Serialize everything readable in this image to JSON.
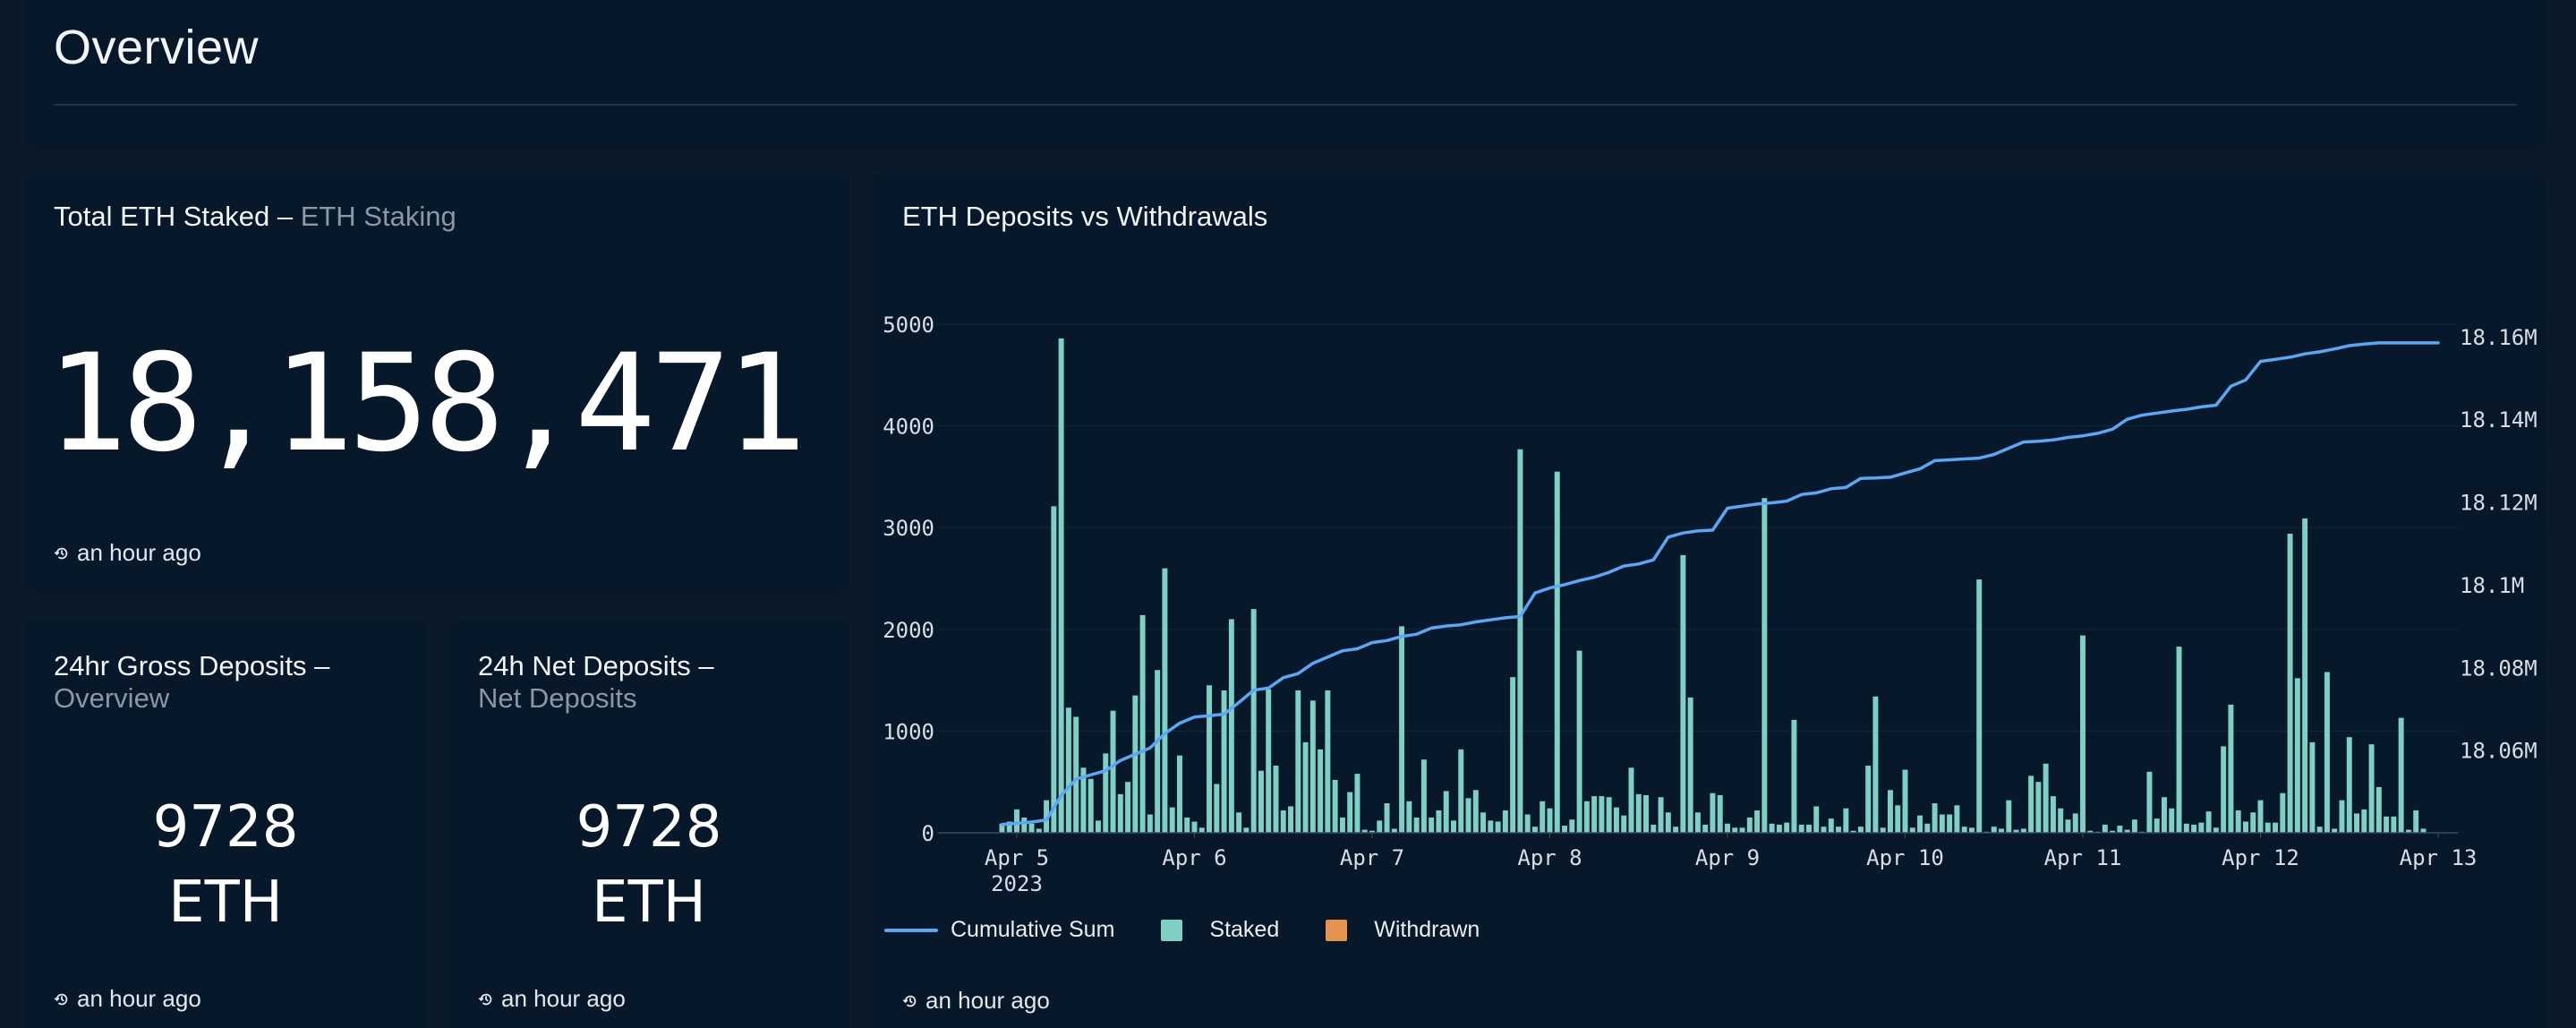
{
  "overview": {
    "title": "Overview"
  },
  "total_staked": {
    "title": "Total ETH Staked",
    "separator": " – ",
    "subtitle": "ETH Staking",
    "value": "18,158,471",
    "updated": "an hour ago"
  },
  "gross_deposits": {
    "title": "24hr Gross Deposits",
    "separator": " –",
    "subtitle": "Overview",
    "value": "9728",
    "unit": "ETH",
    "updated": "an hour ago"
  },
  "net_deposits": {
    "title": "24h Net Deposits",
    "separator": " –",
    "subtitle": "Net Deposits",
    "value": "9728",
    "unit": "ETH",
    "updated": "an hour ago"
  },
  "chart_panel": {
    "title": "ETH Deposits vs Withdrawals",
    "updated": "an hour ago"
  },
  "colors": {
    "staked": "#7ecfc4",
    "withdrawn": "#e6924f",
    "cumulative": "#5aa7f5"
  },
  "chart_data": {
    "type": "bar",
    "title": "ETH Deposits vs Withdrawals",
    "x_axis": {
      "ticks": [
        "Apr 5",
        "Apr 6",
        "Apr 7",
        "Apr 8",
        "Apr 9",
        "Apr 10",
        "Apr 11",
        "Apr 12",
        "Apr 13"
      ],
      "year_label": "2023",
      "range": [
        "2023-04-04 19:00",
        "2023-04-13 00:00"
      ]
    },
    "y_axis_left": {
      "ticks": [
        0,
        1000,
        2000,
        3000,
        4000,
        5000
      ],
      "ylim": [
        0,
        5000
      ]
    },
    "y_axis_right": {
      "ticks": [
        "18.06M",
        "18.08M",
        "18.1M",
        "18.12M",
        "18.14M",
        "18.16M"
      ],
      "ylim": [
        18040000,
        18163000
      ]
    },
    "legend": [
      "Cumulative Sum",
      "Staked",
      "Withdrawn"
    ],
    "legend_position": "bottom-left",
    "series": [
      {
        "name": "Staked",
        "hour_offset_from_apr5": [
          -2,
          -1,
          0,
          1,
          2,
          3,
          4,
          5,
          6,
          7,
          8,
          9,
          10,
          11,
          12,
          13,
          14,
          15,
          16,
          17,
          18,
          19,
          20,
          21,
          22,
          23,
          24,
          25,
          26,
          27,
          28,
          29,
          30,
          31,
          32,
          33,
          34,
          35,
          36,
          37,
          38,
          39,
          40,
          41,
          42,
          43,
          44,
          45,
          46,
          47,
          48,
          49,
          50,
          51,
          52,
          53,
          54,
          55,
          56,
          57,
          58,
          59,
          60,
          61,
          62,
          63,
          64,
          65,
          66,
          67,
          68,
          69,
          70,
          71,
          72,
          73,
          74,
          75,
          76,
          77,
          78,
          79,
          80,
          81,
          82,
          83,
          84,
          85,
          86,
          87,
          88,
          89,
          90,
          91,
          92,
          93,
          94,
          95,
          96,
          97,
          98,
          99,
          100,
          101,
          102,
          103,
          104,
          105,
          106,
          107,
          108,
          109,
          110,
          111,
          112,
          113,
          114,
          115,
          116,
          117,
          118,
          119,
          120,
          121,
          122,
          123,
          124,
          125,
          126,
          127,
          128,
          129,
          130,
          131,
          132,
          133,
          134,
          135,
          136,
          137,
          138,
          139,
          140,
          141,
          142,
          143,
          144,
          145,
          146,
          147,
          148,
          149,
          150,
          151,
          152,
          153,
          154,
          155,
          156,
          157,
          158,
          159,
          160,
          161,
          162,
          163,
          164,
          165,
          166,
          167,
          168,
          169,
          170,
          171,
          172,
          173,
          174,
          175,
          176,
          177,
          178,
          179,
          180,
          181,
          182,
          183,
          184,
          185,
          186,
          187,
          188,
          189,
          190,
          191,
          192
        ],
        "values": [
          90,
          110,
          230,
          150,
          90,
          40,
          320,
          3210,
          4860,
          1230,
          1140,
          640,
          530,
          120,
          780,
          1200,
          380,
          500,
          1350,
          2140,
          180,
          1600,
          2600,
          250,
          760,
          150,
          110,
          50,
          1450,
          480,
          1400,
          2100,
          200,
          50,
          2200,
          610,
          1410,
          660,
          220,
          260,
          1400,
          890,
          1300,
          820,
          1400,
          520,
          150,
          400,
          580,
          30,
          20,
          120,
          290,
          40,
          2030,
          310,
          150,
          720,
          150,
          220,
          410,
          120,
          820,
          340,
          420,
          200,
          120,
          110,
          220,
          1530,
          3770,
          180,
          60,
          310,
          240,
          3550,
          70,
          130,
          1790,
          310,
          360,
          360,
          350,
          250,
          170,
          640,
          380,
          370,
          80,
          350,
          200,
          60,
          2730,
          1330,
          200,
          80,
          390,
          370,
          90,
          50,
          50,
          150,
          220,
          3290,
          90,
          80,
          100,
          1110,
          80,
          80,
          260,
          60,
          140,
          60,
          240,
          20,
          60,
          660,
          1340,
          50,
          420,
          270,
          620,
          50,
          170,
          90,
          290,
          180,
          180,
          270,
          60,
          50,
          2490,
          10,
          60,
          40,
          320,
          30,
          40,
          560,
          500,
          680,
          360,
          240,
          130,
          190,
          1940,
          20,
          10,
          80,
          20,
          70,
          30,
          130,
          10,
          600,
          140,
          350,
          240,
          1830,
          90,
          80,
          100,
          210,
          50,
          850,
          1260,
          220,
          110,
          200,
          320,
          100,
          100,
          390,
          2940,
          1520,
          3090,
          890,
          60,
          1580,
          40,
          320,
          940,
          190,
          230,
          870,
          450,
          160,
          160,
          1130,
          30,
          220,
          40
        ]
      },
      {
        "name": "Withdrawn",
        "hour_offset_from_apr5": [],
        "values": []
      },
      {
        "name": "Cumulative Sum",
        "hour_offset_from_apr5": [
          -2,
          0,
          2,
          4,
          6,
          8,
          10,
          12,
          14,
          16,
          18,
          20,
          22,
          24,
          26,
          28,
          30,
          32,
          34,
          36,
          38,
          40,
          42,
          44,
          46,
          48,
          50,
          52,
          54,
          56,
          58,
          60,
          62,
          64,
          66,
          68,
          70,
          72,
          74,
          76,
          78,
          80,
          82,
          84,
          86,
          88,
          90,
          92,
          94,
          96,
          98,
          100,
          102,
          104,
          106,
          108,
          110,
          112,
          114,
          116,
          118,
          120,
          122,
          124,
          126,
          128,
          130,
          132,
          134,
          136,
          138,
          140,
          142,
          144,
          146,
          148,
          150,
          152,
          154,
          156,
          158,
          160,
          162,
          164,
          166,
          168,
          170,
          172,
          174,
          176,
          178,
          180,
          182,
          184,
          186,
          188,
          190,
          192
        ],
        "values": [
          18042000,
          18042300,
          18042600,
          18043100,
          18049000,
          18053000,
          18054000,
          18055000,
          18057500,
          18059000,
          18060500,
          18064000,
          18066500,
          18068000,
          18068300,
          18068700,
          18071500,
          18074500,
          18075000,
          18077500,
          18078500,
          18081000,
          18082500,
          18084000,
          18084500,
          18086000,
          18086500,
          18087500,
          18088000,
          18089500,
          18090000,
          18090300,
          18091000,
          18091500,
          18092000,
          18092300,
          18098000,
          18099200,
          18100000,
          18101000,
          18101800,
          18103000,
          18104500,
          18105000,
          18106000,
          18111500,
          18112500,
          18113000,
          18113200,
          18118500,
          18119000,
          18119500,
          18119800,
          18120200,
          18121800,
          18122200,
          18123200,
          18123500,
          18125700,
          18125800,
          18126000,
          18127000,
          18128000,
          18130000,
          18130200,
          18130400,
          18130600,
          18131500,
          18133000,
          18134500,
          18134700,
          18135000,
          18135600,
          18136000,
          18136600,
          18137600,
          18140000,
          18141000,
          18141500,
          18142000,
          18142400,
          18143000,
          18143400,
          18148000,
          18149500,
          18154000,
          18154500,
          18155000,
          18155800,
          18156300,
          18157000,
          18157800,
          18158200,
          18158471,
          18158471,
          18158471,
          18158471,
          18158471
        ]
      }
    ]
  }
}
